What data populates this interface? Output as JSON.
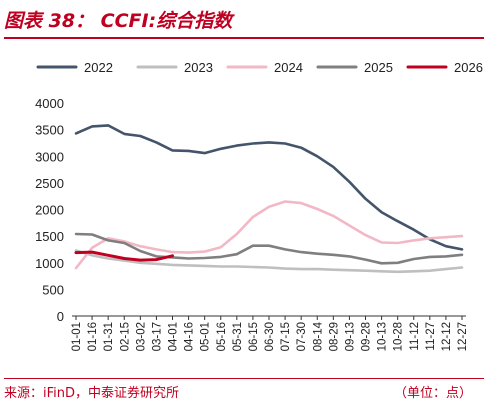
{
  "figure": {
    "title": "图表 38： CCFI:综合指数",
    "source": "来源：iFinD，中泰证券研究所",
    "unit": "（单位：点）"
  },
  "chart_data": {
    "type": "line",
    "categories": [
      "01-01",
      "01-16",
      "01-31",
      "02-15",
      "03-02",
      "03-17",
      "04-01",
      "04-16",
      "05-01",
      "05-16",
      "05-31",
      "06-15",
      "06-30",
      "07-15",
      "07-30",
      "08-14",
      "08-29",
      "09-13",
      "09-28",
      "10-13",
      "10-28",
      "11-12",
      "11-27",
      "12-12",
      "12-27"
    ],
    "ylim": [
      0,
      4000
    ],
    "yticks": [
      0,
      500,
      1000,
      1500,
      2000,
      2500,
      3000,
      3500,
      4000
    ],
    "legend_position": "top",
    "series": [
      {
        "name": "2022",
        "color": "#44546a",
        "values": [
          3430,
          3560,
          3580,
          3420,
          3380,
          3260,
          3110,
          3100,
          3060,
          3140,
          3200,
          3240,
          3260,
          3240,
          3160,
          3000,
          2800,
          2520,
          2200,
          1950,
          1780,
          1620,
          1440,
          1310,
          1250
        ]
      },
      {
        "name": "2023",
        "color": "#bfbfbf",
        "values": [
          1230,
          1140,
          1080,
          1040,
          1000,
          980,
          960,
          950,
          940,
          930,
          930,
          920,
          910,
          890,
          880,
          880,
          870,
          860,
          850,
          840,
          830,
          840,
          850,
          880,
          910
        ]
      },
      {
        "name": "2024",
        "color": "#f2b8c6",
        "values": [
          900,
          1280,
          1460,
          1400,
          1310,
          1250,
          1200,
          1190,
          1210,
          1290,
          1540,
          1860,
          2050,
          2150,
          2120,
          2010,
          1880,
          1700,
          1520,
          1380,
          1370,
          1420,
          1460,
          1480,
          1500
        ]
      },
      {
        "name": "2025",
        "color": "#7f7f7f",
        "values": [
          1540,
          1530,
          1420,
          1370,
          1220,
          1120,
          1100,
          1080,
          1090,
          1110,
          1160,
          1320,
          1320,
          1250,
          1200,
          1170,
          1150,
          1120,
          1060,
          990,
          1000,
          1070,
          1110,
          1120,
          1150
        ]
      },
      {
        "name": "2026",
        "color": "#c00021",
        "values": [
          1190,
          1200,
          1140,
          1080,
          1050,
          1060,
          1130,
          null,
          null,
          null,
          null,
          null,
          null,
          null,
          null,
          null,
          null,
          null,
          null,
          null,
          null,
          null,
          null,
          null,
          null
        ]
      }
    ]
  }
}
